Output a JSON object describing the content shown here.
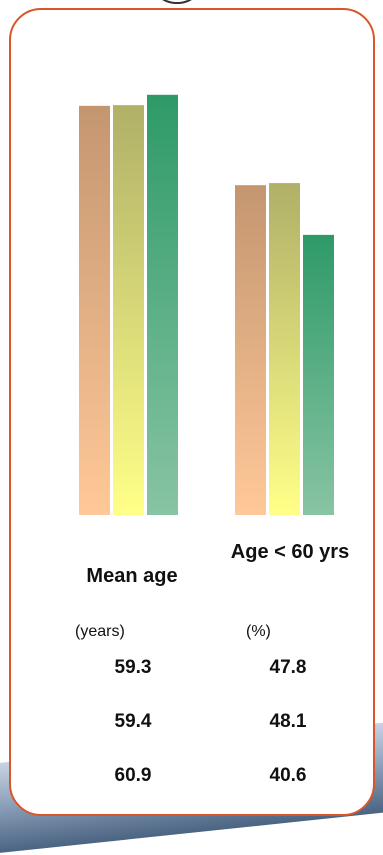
{
  "chart_data": {
    "type": "bar",
    "groups": [
      {
        "label": "Mean age",
        "unit": "(years)",
        "values": [
          59.3,
          59.4,
          60.9
        ]
      },
      {
        "label": "Age < 60 yrs",
        "unit": "(%)",
        "values": [
          47.8,
          48.1,
          40.6
        ]
      }
    ],
    "colors": [
      {
        "top": "#c49670",
        "bottom": "#ffc898"
      },
      {
        "top": "#b0b068",
        "bottom": "#ffff88"
      },
      {
        "top": "#2e9a68",
        "bottom": "#88c4a4"
      }
    ],
    "ylim": [
      0,
      65
    ]
  },
  "table": {
    "mean_age": [
      "59.3",
      "59.4",
      "60.9"
    ],
    "age_under_60": [
      "47.8",
      "48.1",
      "40.6"
    ]
  },
  "labels": {
    "mean_age": "Mean age",
    "age_under_60": "Age < 60 yrs",
    "mean_age_unit": "(years)",
    "age_unit": "(%)"
  }
}
